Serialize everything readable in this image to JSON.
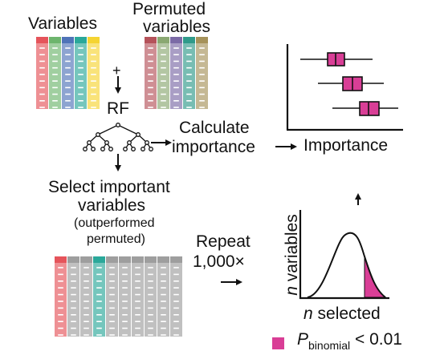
{
  "labels": {
    "variables": "Variables",
    "permuted_line1": "Permuted",
    "permuted_line2": "variables",
    "plus": "+",
    "rf": "RF",
    "calculate_line1": "Calculate",
    "calculate_line2": "importance",
    "importance_axis": "Importance",
    "select_line1": "Select important",
    "select_line2": "variables",
    "outperformed_line1": "(outperformed",
    "outperformed_line2": "permuted)",
    "repeat_line1": "Repeat",
    "repeat_line2": "1,000×",
    "n_variables_n": "n",
    "n_variables_rest": " variables",
    "n_selected_n": "n",
    "n_selected_rest": " selected",
    "legend_p": "P",
    "legend_sub": "binomial",
    "legend_rest": " < 0.01"
  },
  "colors": {
    "variable_columns": [
      "#e5545b",
      "#6db56d",
      "#4f73b8",
      "#2aa89a",
      "#f5d432"
    ],
    "permuted_columns": [
      "#b5525a",
      "#8aa872",
      "#7b6aa6",
      "#2f9a8a",
      "#a6925a"
    ],
    "accent_magenta": "#d93e96",
    "gray_column": "#9e9e9e"
  },
  "icons": [
    "tree-icon",
    "down-arrow-icon",
    "right-arrow-icon",
    "up-arrow-icon"
  ]
}
